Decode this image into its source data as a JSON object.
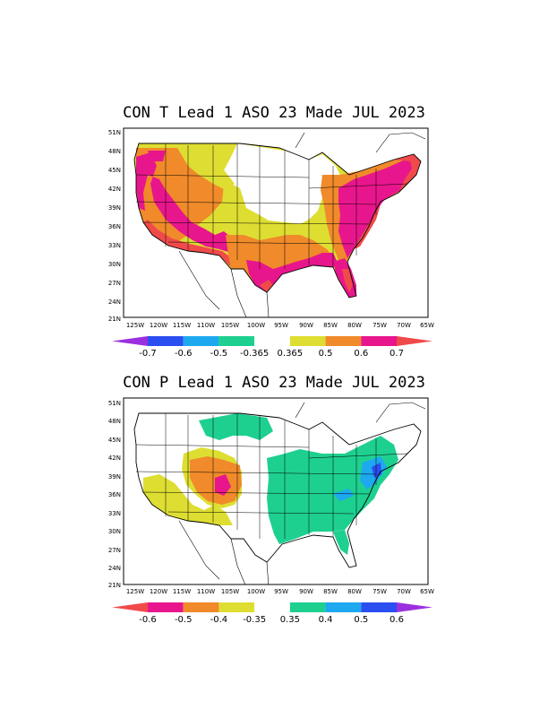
{
  "maps": [
    {
      "title": "CON T Lead 1 ASO 23 Made JUL 2023",
      "colors": {
        "orange": "#f08a2a",
        "magenta": "#e8168c",
        "red": "#f04a4a",
        "yellow": "#dede32"
      },
      "colorbar": {
        "labels": [
          "-0.7",
          "-0.6",
          "-0.5",
          "-0.365",
          "0.365",
          "0.5",
          "0.6",
          "0.7"
        ],
        "colors": [
          "#9b30e0",
          "#2b4ef0",
          "#1ea8f0",
          "#1ed090",
          "#ffffff",
          "#dede32",
          "#f08a2a",
          "#e8168c",
          "#f04a4a"
        ]
      }
    },
    {
      "title": "CON P  Lead 1 ASO 23 Made JUL 2023",
      "colors": {
        "green": "#1ed090",
        "blue": "#1ea8f0",
        "orange": "#f08a2a",
        "yellow": "#dede32",
        "magenta": "#e8168c"
      },
      "colorbar": {
        "labels": [
          "-0.6",
          "-0.5",
          "-0.4",
          "-0.35",
          "0.35",
          "0.4",
          "0.5",
          "0.6"
        ],
        "colors": [
          "#f04a4a",
          "#e8168c",
          "#f08a2a",
          "#dede32",
          "#ffffff",
          "#1ed090",
          "#1ea8f0",
          "#2b4ef0",
          "#9b30e0"
        ]
      }
    }
  ],
  "axes": {
    "lat_labels": [
      "51N",
      "48N",
      "45N",
      "42N",
      "39N",
      "36N",
      "33N",
      "30N",
      "27N",
      "24N",
      "21N"
    ],
    "lon_labels": [
      "125W",
      "120W",
      "115W",
      "110W",
      "105W",
      "100W",
      "95W",
      "90W",
      "85W",
      "80W",
      "75W",
      "70W",
      "65W"
    ]
  }
}
